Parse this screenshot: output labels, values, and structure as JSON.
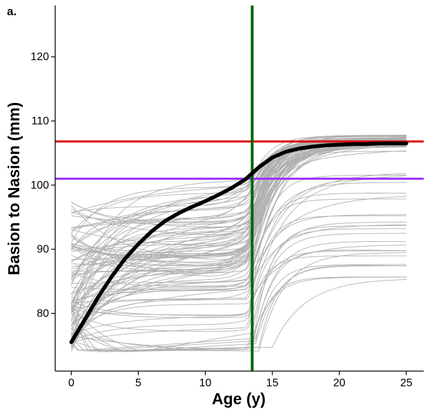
{
  "chart_data": {
    "type": "line",
    "panel_label": "a.",
    "title": "",
    "xlabel": "Age (y)",
    "ylabel": "Basion to Nasion (mm)",
    "xlim": [
      -1.2,
      26.3
    ],
    "ylim": [
      71,
      128
    ],
    "xticks": [
      0,
      5,
      10,
      15,
      20,
      25
    ],
    "yticks": [
      80,
      90,
      100,
      110,
      120
    ],
    "grid": false,
    "legend": "none",
    "vertical_reference": {
      "x": 13.5,
      "color": "#006400"
    },
    "horizontal_references": [
      {
        "y": 106.8,
        "color": "#e00000"
      },
      {
        "y": 101.0,
        "color": "#9b30ff"
      }
    ],
    "mean_curve": {
      "color": "#000000",
      "points": [
        [
          0,
          75.5
        ],
        [
          1,
          79.0
        ],
        [
          2,
          82.5
        ],
        [
          3,
          85.7
        ],
        [
          4,
          88.5
        ],
        [
          5,
          90.8
        ],
        [
          6,
          92.8
        ],
        [
          7,
          94.4
        ],
        [
          8,
          95.6
        ],
        [
          9,
          96.6
        ],
        [
          10,
          97.5
        ],
        [
          11,
          98.5
        ],
        [
          12,
          99.6
        ],
        [
          13,
          100.9
        ],
        [
          14,
          102.8
        ],
        [
          15,
          104.3
        ],
        [
          16,
          105.2
        ],
        [
          17,
          105.7
        ],
        [
          18,
          106.0
        ],
        [
          19,
          106.2
        ],
        [
          20,
          106.3
        ],
        [
          21,
          106.4
        ],
        [
          22,
          106.4
        ],
        [
          23,
          106.5
        ],
        [
          24,
          106.5
        ],
        [
          25,
          106.5
        ]
      ]
    },
    "individual_curves": {
      "color": "#b0b0b0",
      "count": 110
    }
  }
}
